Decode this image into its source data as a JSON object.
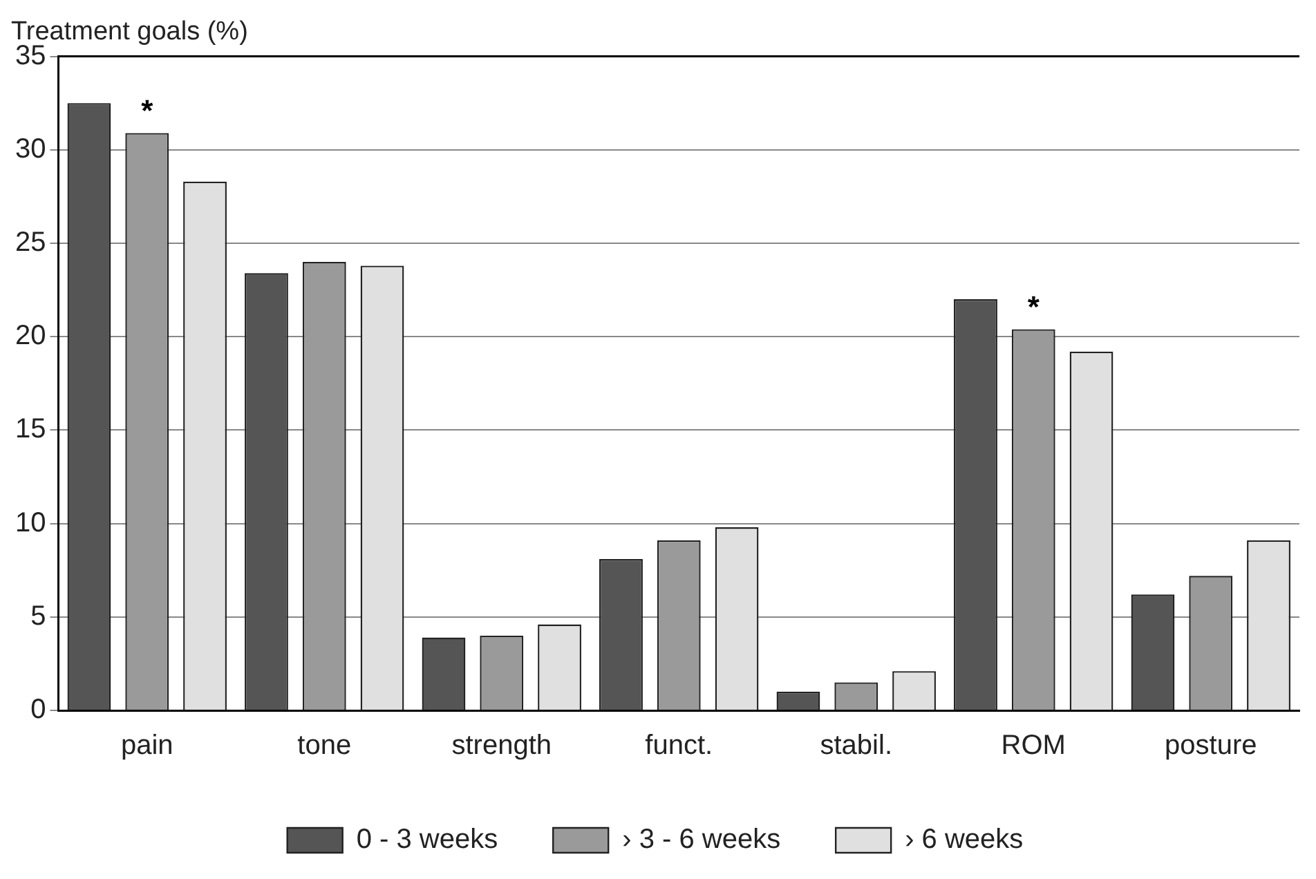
{
  "chart_data": {
    "type": "bar",
    "ylabel": "Treatment goals (%)",
    "categories": [
      "pain",
      "tone",
      "strength",
      "funct.",
      "stabil.",
      "ROM",
      "posture"
    ],
    "series": [
      {
        "name": "0 - 3 weeks",
        "color": "#555555",
        "values": [
          32.5,
          23.4,
          3.9,
          8.1,
          1.0,
          22.0,
          6.2
        ]
      },
      {
        "name": "› 3 - 6 weeks",
        "color": "#9a9a9a",
        "values": [
          30.9,
          24.0,
          4.0,
          9.1,
          1.5,
          20.4,
          7.2
        ]
      },
      {
        "name": "› 6 weeks",
        "color": "#e0e0e0",
        "values": [
          28.3,
          23.8,
          4.6,
          9.8,
          2.1,
          19.2,
          9.1
        ]
      }
    ],
    "ylim": [
      0,
      35
    ],
    "yticks": [
      0,
      5,
      10,
      15,
      20,
      25,
      30,
      35
    ],
    "grid": "y",
    "legend": "bottom",
    "annotations": [
      {
        "text": "*",
        "x": "pain",
        "y": 30.9
      },
      {
        "text": "*",
        "x": "ROM",
        "y": 20.4
      }
    ]
  }
}
